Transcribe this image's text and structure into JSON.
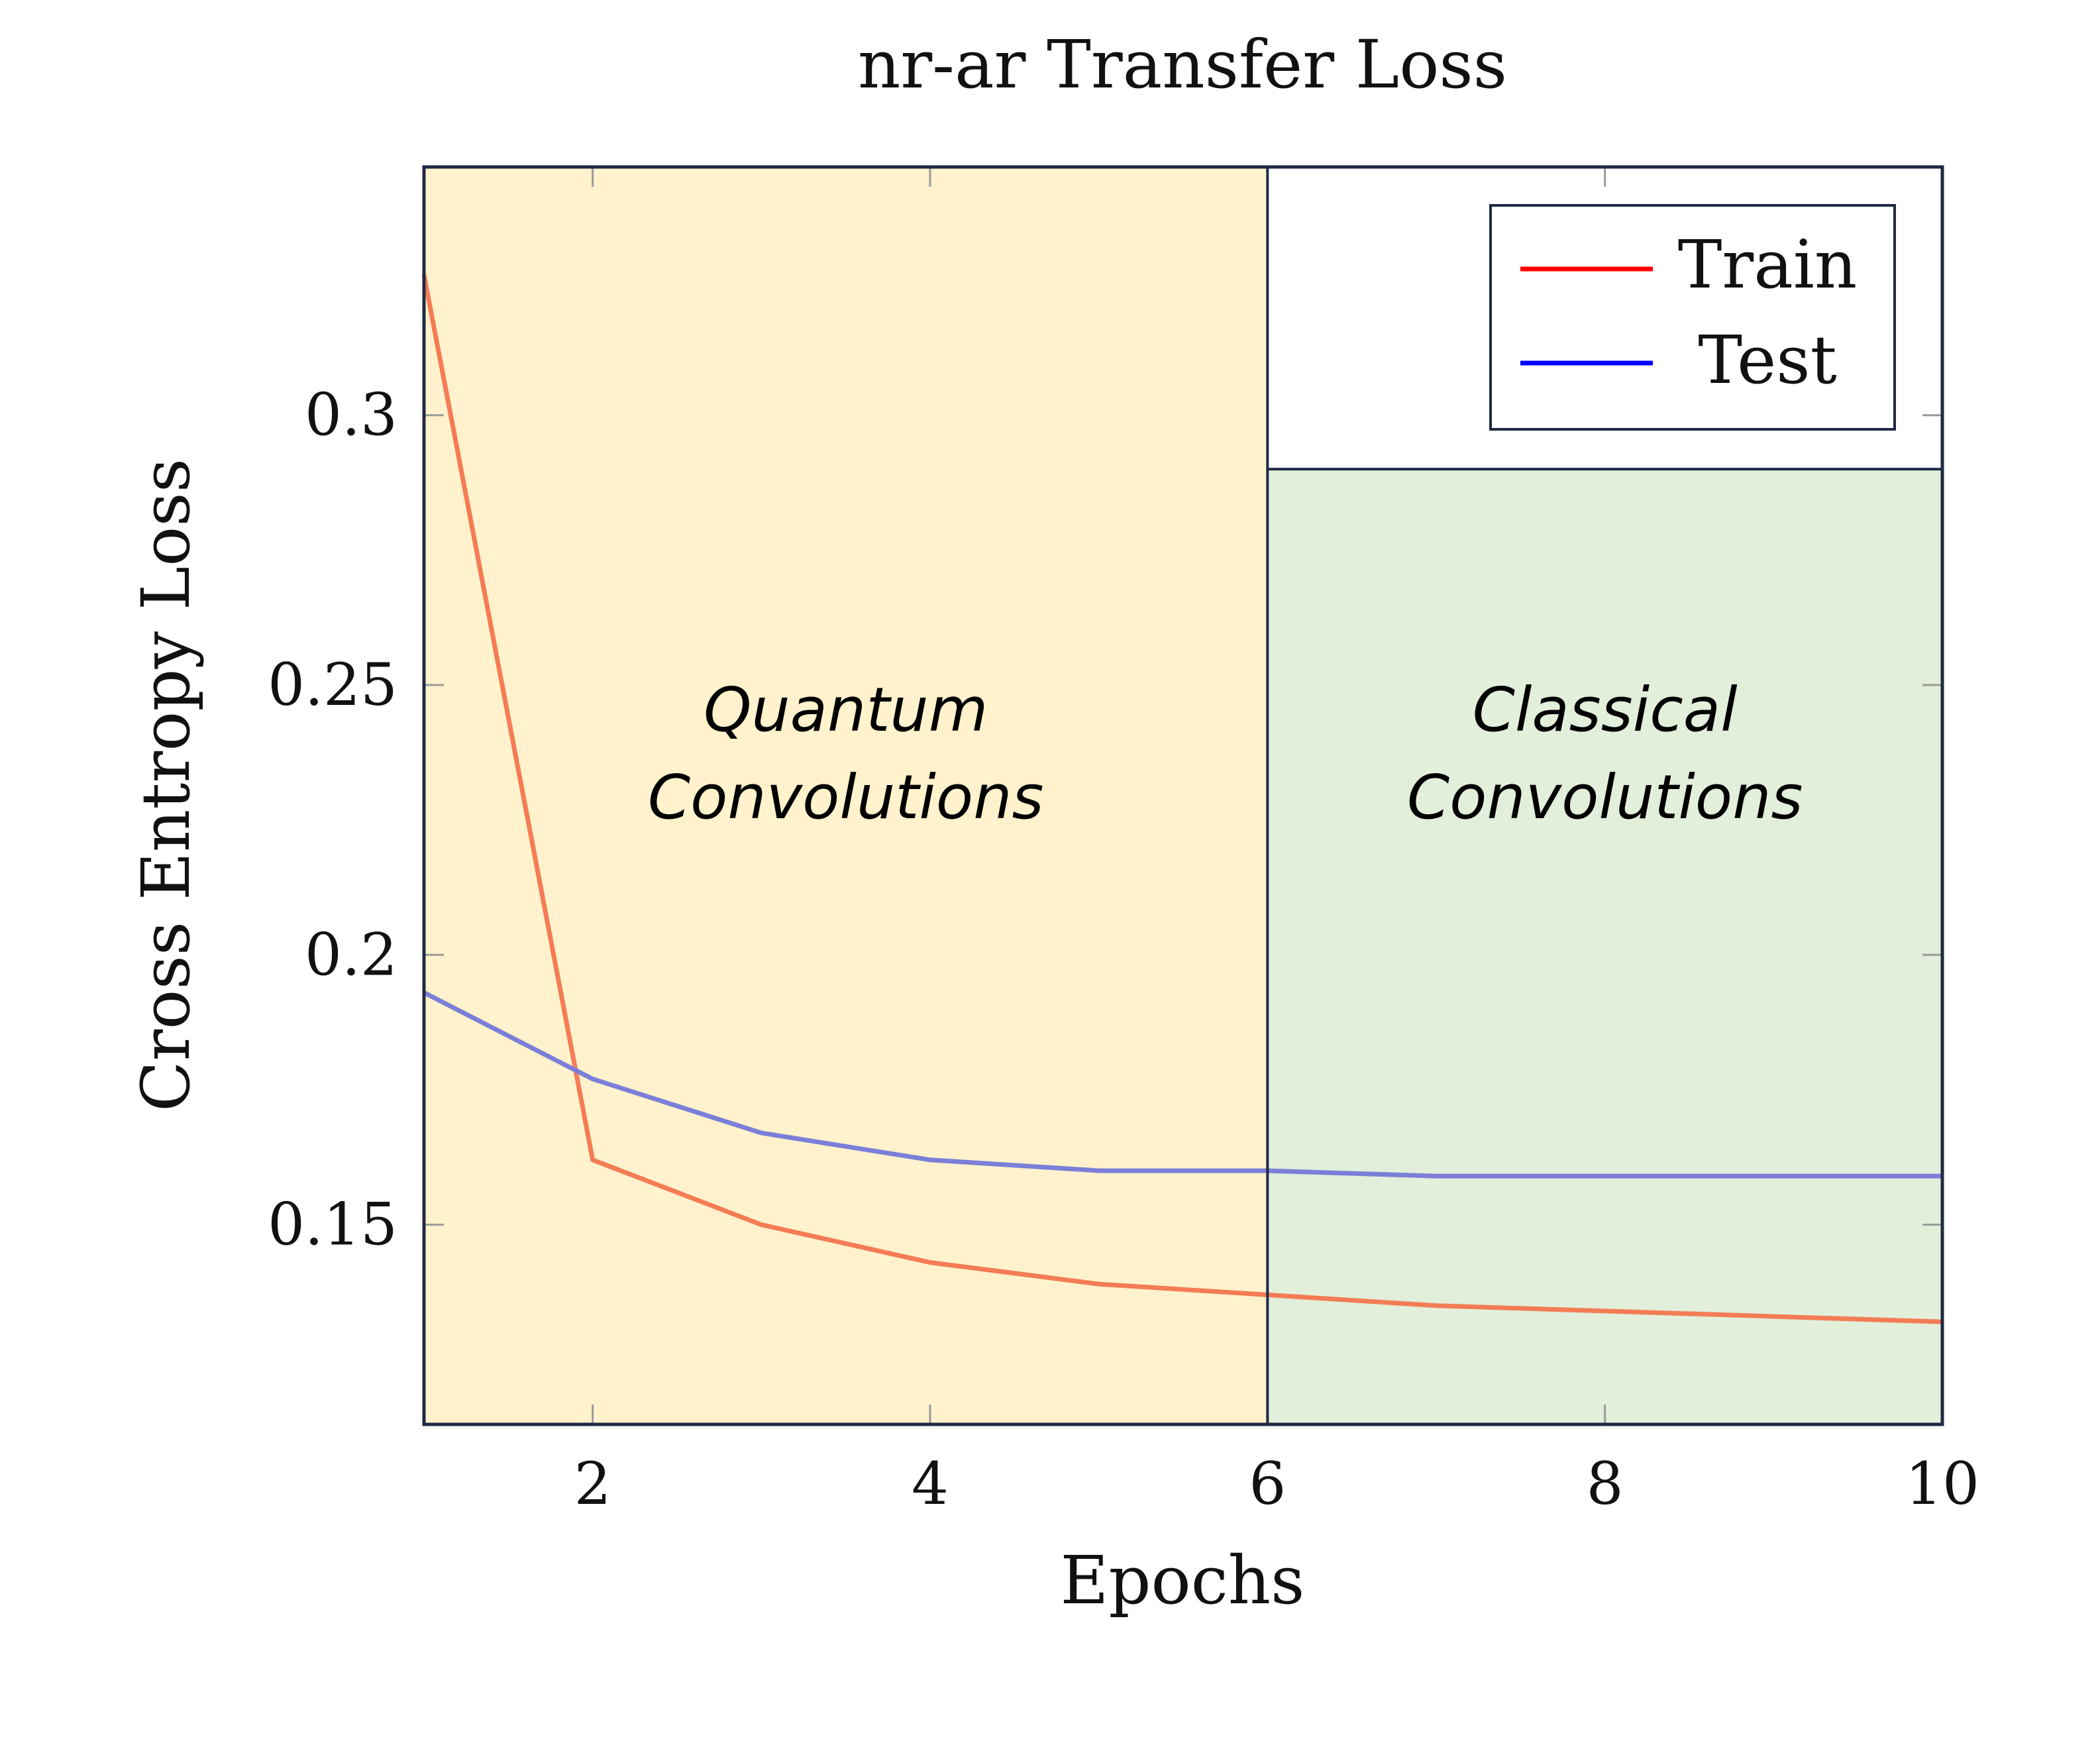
{
  "chart_data": {
    "type": "line",
    "title": "nr-ar Transfer Loss",
    "xlabel": "Epochs",
    "ylabel": "Cross Entropy Loss",
    "xlim": [
      1,
      10
    ],
    "ylim": [
      0.113,
      0.346
    ],
    "xticks": [
      2,
      4,
      6,
      8,
      10
    ],
    "yticks": [
      0.15,
      0.2,
      0.25,
      0.3
    ],
    "ytick_labels": [
      "0.15",
      "0.2",
      "0.25",
      "0.3"
    ],
    "grid": false,
    "legend_position": "top-right",
    "x": [
      1,
      2,
      3,
      4,
      5,
      6,
      7,
      8,
      9,
      10
    ],
    "series": [
      {
        "name": "Train",
        "legend_color": "#ff0000",
        "color": "#f47c55",
        "values": [
          0.326,
          0.162,
          0.15,
          0.143,
          0.139,
          0.137,
          0.135,
          0.134,
          0.133,
          0.132
        ]
      },
      {
        "name": "Test",
        "legend_color": "#0000ff",
        "color": "#7b7fd8",
        "values": [
          0.193,
          0.177,
          0.167,
          0.162,
          0.16,
          0.16,
          0.159,
          0.159,
          0.159,
          0.159
        ]
      }
    ],
    "regions": [
      {
        "label_line1": "Quantum",
        "label_line2": "Convolutions",
        "x_start": 1,
        "x_end": 6,
        "y_top": 0.346,
        "color": "#fff2cc"
      },
      {
        "label_line1": "Classical",
        "label_line2": "Convolutions",
        "x_start": 6,
        "x_end": 10,
        "y_top": 0.29,
        "color": "#e2efda"
      }
    ]
  }
}
